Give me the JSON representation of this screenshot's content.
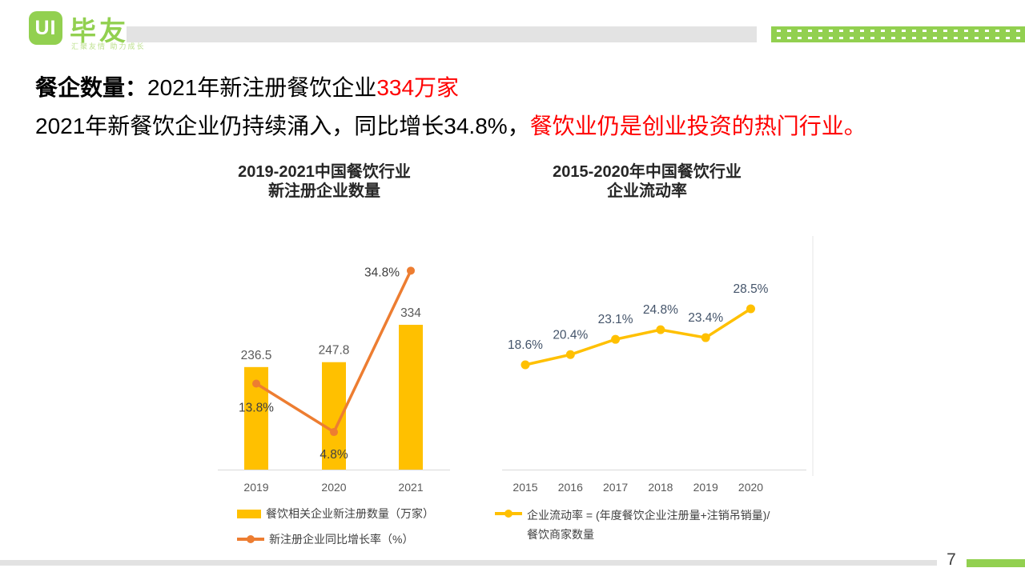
{
  "brand": {
    "logo_text": "UI",
    "name": "毕友",
    "tagline": "汇聚友情 助力成长"
  },
  "title": {
    "line1_bold": "餐企数量：",
    "line1_normal": "2021年新注册餐饮企业",
    "line1_highlight": "334万家",
    "line2_normal": "2021年新餐饮企业仍持续涌入，同比增长34.8%，",
    "line2_highlight": "餐饮业仍是创业投资的热门行业。"
  },
  "page_number": "7",
  "colors": {
    "brand_green": "#92D050",
    "bar_yellow": "#FFC000",
    "line_orange": "#ED7D31",
    "highlight_red": "#FF0000",
    "axis_gray": "#D9D9D9"
  },
  "chart_data": [
    {
      "type": "bar",
      "title": "2019-2021中国餐饮行业 新注册企业数量",
      "title_line1": "2019-2021中国餐饮行业",
      "title_line2": "新注册企业数量",
      "categories": [
        "2019",
        "2020",
        "2021"
      ],
      "series": [
        {
          "name": "餐饮相关企业新注册数量（万家）",
          "type": "bar",
          "values": [
            236.5,
            247.8,
            334
          ],
          "labels": [
            "236.5",
            "247.8",
            "334"
          ],
          "color": "#FFC000"
        },
        {
          "name": "新注册企业同比增长率（%）",
          "type": "line",
          "values": [
            13.8,
            4.8,
            34.8
          ],
          "labels": [
            "13.8%",
            "4.8%",
            "34.8%"
          ],
          "color": "#ED7D31"
        }
      ],
      "legend_position": "bottom",
      "grid": false,
      "ylim": [
        0,
        360
      ]
    },
    {
      "type": "line",
      "title": "2015-2020年中国餐饮行业 企业流动率",
      "title_line1": "2015-2020年中国餐饮行业",
      "title_line2": "企业流动率",
      "categories": [
        "2015",
        "2016",
        "2017",
        "2018",
        "2019",
        "2020"
      ],
      "series": [
        {
          "name": "企业流动率 = (年度餐饮企业注册量+注销吊销量)/餐饮商家数量",
          "type": "line",
          "values": [
            18.6,
            20.4,
            23.1,
            24.8,
            23.4,
            28.5
          ],
          "labels": [
            "18.6%",
            "20.4%",
            "23.1%",
            "24.8%",
            "23.4%",
            "28.5%"
          ],
          "color": "#FFC000"
        }
      ],
      "legend_position": "bottom",
      "grid": false,
      "ylim": [
        0,
        32
      ]
    }
  ]
}
